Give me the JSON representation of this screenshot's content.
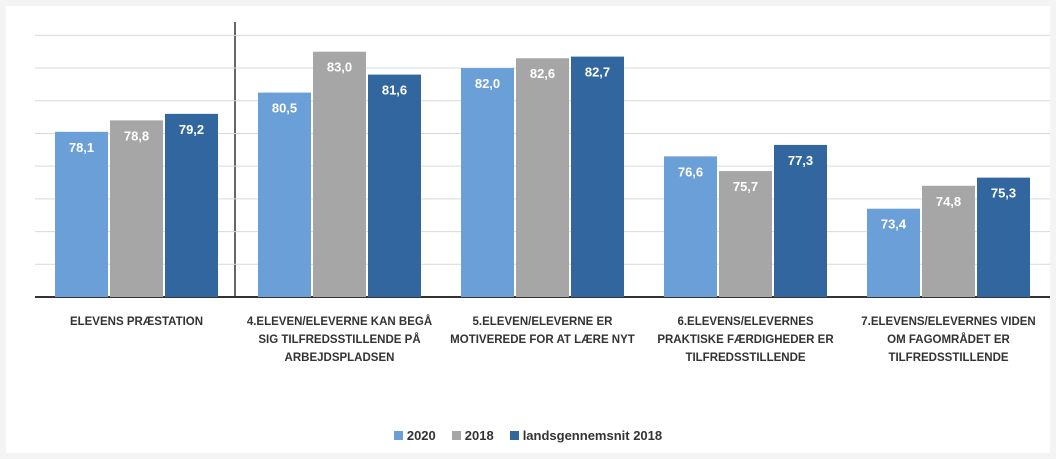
{
  "chart_data": {
    "type": "bar",
    "categories": [
      "ELEVENS PRÆSTATION",
      "4.ELEVEN/ELEVERNE KAN BEGÅ SIG TILFREDSSTILLENDE PÅ ARBEJDSPLADSEN",
      "5.ELEVEN/ELEVERNE ER MOTIVEREDE FOR AT LÆRE NYT",
      "6.ELEVENS/ELEVERNES PRAKTISKE FÆRDIGHEDER ER TILFREDSSTILLENDE",
      "7.ELEVENS/ELEVERNES VIDEN OM FAGOMRÅDET ER TILFREDSSTILLENDE"
    ],
    "series": [
      {
        "name": "2020",
        "color": "#6a9fd8",
        "values": [
          78.1,
          80.5,
          82.0,
          76.6,
          73.4
        ],
        "value_labels": [
          "78,1",
          "80,5",
          "82,0",
          "76,6",
          "73,4"
        ]
      },
      {
        "name": "2018",
        "color": "#a6a6a6",
        "values": [
          78.8,
          83.0,
          82.6,
          75.7,
          74.8
        ],
        "value_labels": [
          "78,8",
          "83,0",
          "82,6",
          "75,7",
          "74,8"
        ]
      },
      {
        "name": "landsgennemsnit 2018",
        "color": "#31679e",
        "values": [
          79.2,
          81.6,
          82.7,
          77.3,
          75.3
        ],
        "value_labels": [
          "79,2",
          "81,6",
          "82,7",
          "77,3",
          "75,3"
        ]
      }
    ],
    "ylim": [
      68,
      85
    ],
    "yticks": [
      68,
      70,
      72,
      74,
      76,
      78,
      80,
      82,
      84
    ],
    "grid": true,
    "legend": "bottom"
  }
}
